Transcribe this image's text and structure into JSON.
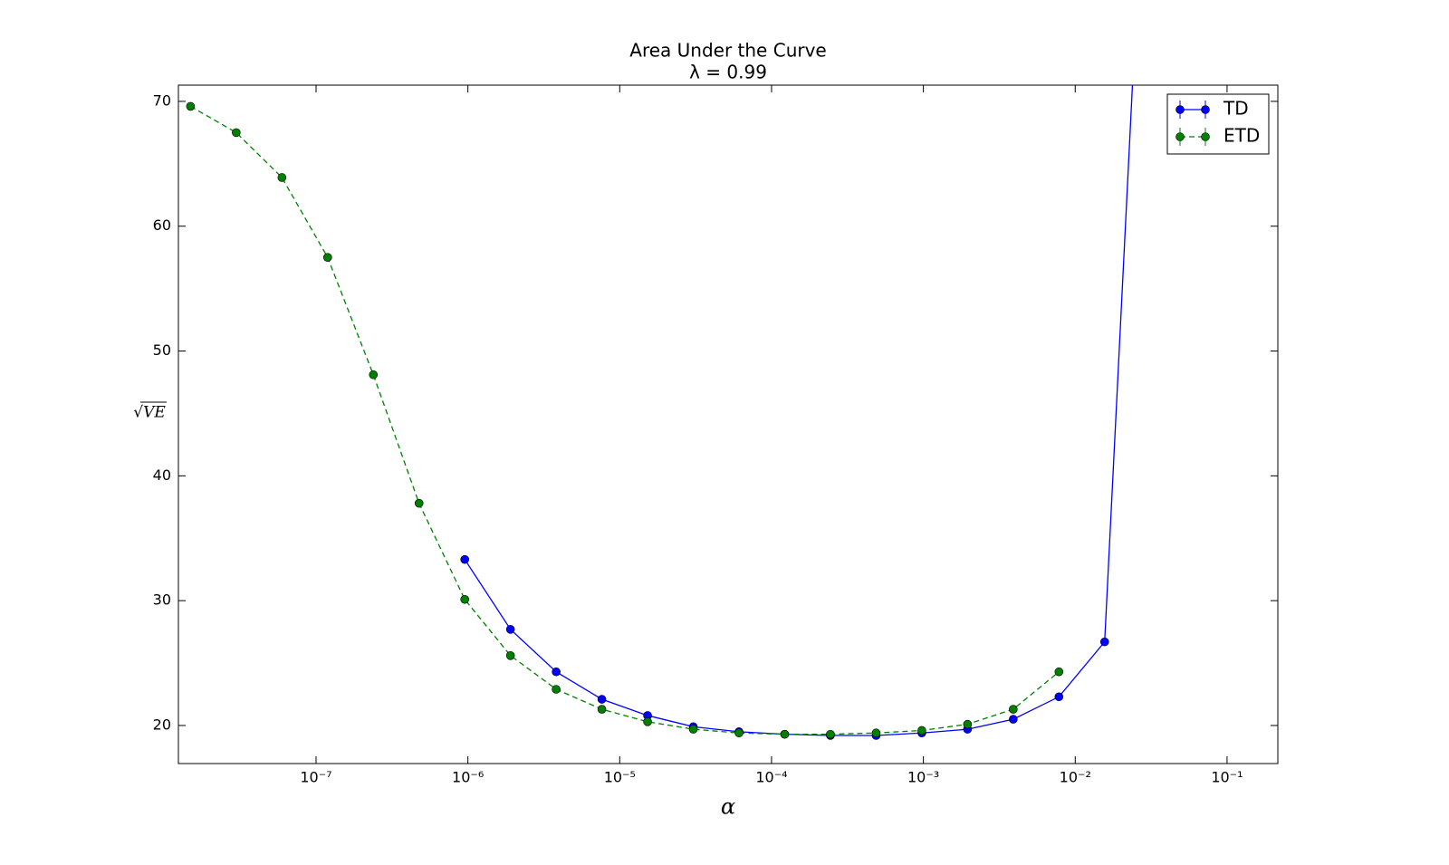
{
  "chart_data": {
    "type": "line",
    "title": "Area Under the Curve",
    "subtitle": "λ = 0.99",
    "x_label": "α",
    "y_label": "√VE",
    "x_scale": "log",
    "x": [
      1.4901161193847656e-08,
      2.9802322387695312e-08,
      5.960464477539063e-08,
      1.1920928955078125e-07,
      2.384185791015625e-07,
      4.76837158203125e-07,
      9.5367431640625e-07,
      1.9073486328125e-06,
      3.814697265625e-06,
      7.62939453125e-06,
      1.52587890625e-05,
      3.0517578125e-05,
      6.103515625e-05,
      0.0001220703125,
      0.000244140625,
      0.00048828125,
      0.0009765625,
      0.001953125,
      0.00390625,
      0.0078125,
      0.015625,
      0.03125
    ],
    "series": [
      {
        "name": "TD",
        "color": "#0000ff",
        "linestyle": "solid",
        "values": [
          null,
          null,
          null,
          null,
          null,
          null,
          33.3,
          27.7,
          24.3,
          22.1,
          20.8,
          19.9,
          19.5,
          19.3,
          19.2,
          19.2,
          19.4,
          19.7,
          20.5,
          22.3,
          26.7,
          100
        ]
      },
      {
        "name": "ETD",
        "color": "#008000",
        "linestyle": "dashed",
        "values": [
          69.6,
          67.5,
          63.9,
          57.5,
          48.1,
          37.8,
          30.1,
          25.6,
          22.9,
          21.3,
          20.3,
          19.7,
          19.4,
          19.3,
          19.3,
          19.4,
          19.6,
          20.1,
          21.3,
          24.3,
          null,
          null
        ]
      }
    ],
    "xlim": [
      1.24e-08,
      0.216
    ],
    "ylim": [
      16.95,
      71.3
    ],
    "xticks": [
      {
        "value": 1e-07,
        "label": "10⁻⁷"
      },
      {
        "value": 1e-06,
        "label": "10⁻⁶"
      },
      {
        "value": 1e-05,
        "label": "10⁻⁵"
      },
      {
        "value": 0.0001,
        "label": "10⁻⁴"
      },
      {
        "value": 0.001,
        "label": "10⁻³"
      },
      {
        "value": 0.01,
        "label": "10⁻²"
      },
      {
        "value": 0.1,
        "label": "10⁻¹"
      }
    ],
    "yticks": [
      20,
      30,
      40,
      50,
      60,
      70
    ],
    "legend": "upper right"
  }
}
